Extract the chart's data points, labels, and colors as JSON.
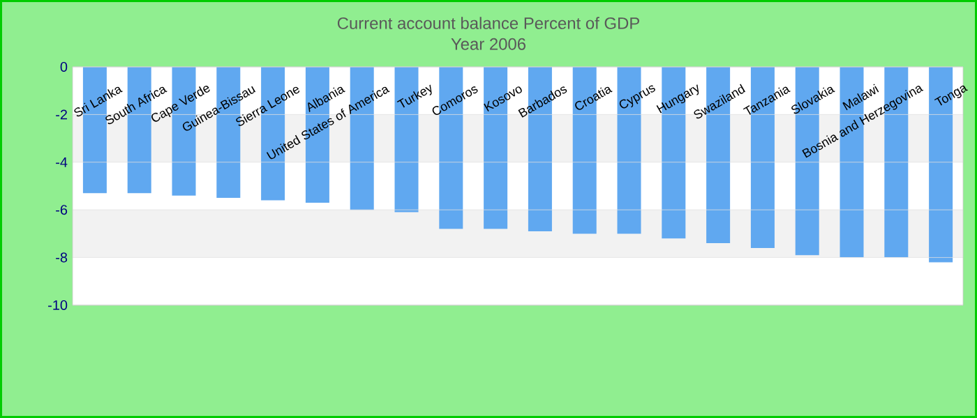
{
  "chart_data": {
    "type": "bar",
    "title": "Current account balance  Percent of GDP",
    "subtitle": "Year 2006",
    "categories": [
      "Sri Lanka",
      "South Africa",
      "Cape Verde",
      "Guinea-Bissau",
      "Sierra Leone",
      "Albania",
      "United States of America",
      "Turkey",
      "Comoros",
      "Kosovo",
      "Barbados",
      "Croatia",
      "Cyprus",
      "Hungary",
      "Swaziland",
      "Tanzania",
      "Slovakia",
      "Malawi",
      "Bosnia and Herzegovina",
      "Tonga"
    ],
    "values": [
      -5.3,
      -5.3,
      -5.4,
      -5.5,
      -5.6,
      -5.7,
      -6.0,
      -6.1,
      -6.8,
      -6.8,
      -6.9,
      -7.0,
      -7.0,
      -7.2,
      -7.4,
      -7.6,
      -7.9,
      -8.0,
      -8.0,
      -8.2
    ],
    "color": "#60a8f0",
    "ylim": [
      -10,
      0
    ],
    "yticks": [
      -10,
      -8,
      -6,
      -4,
      -2,
      0
    ],
    "grid": "y"
  }
}
